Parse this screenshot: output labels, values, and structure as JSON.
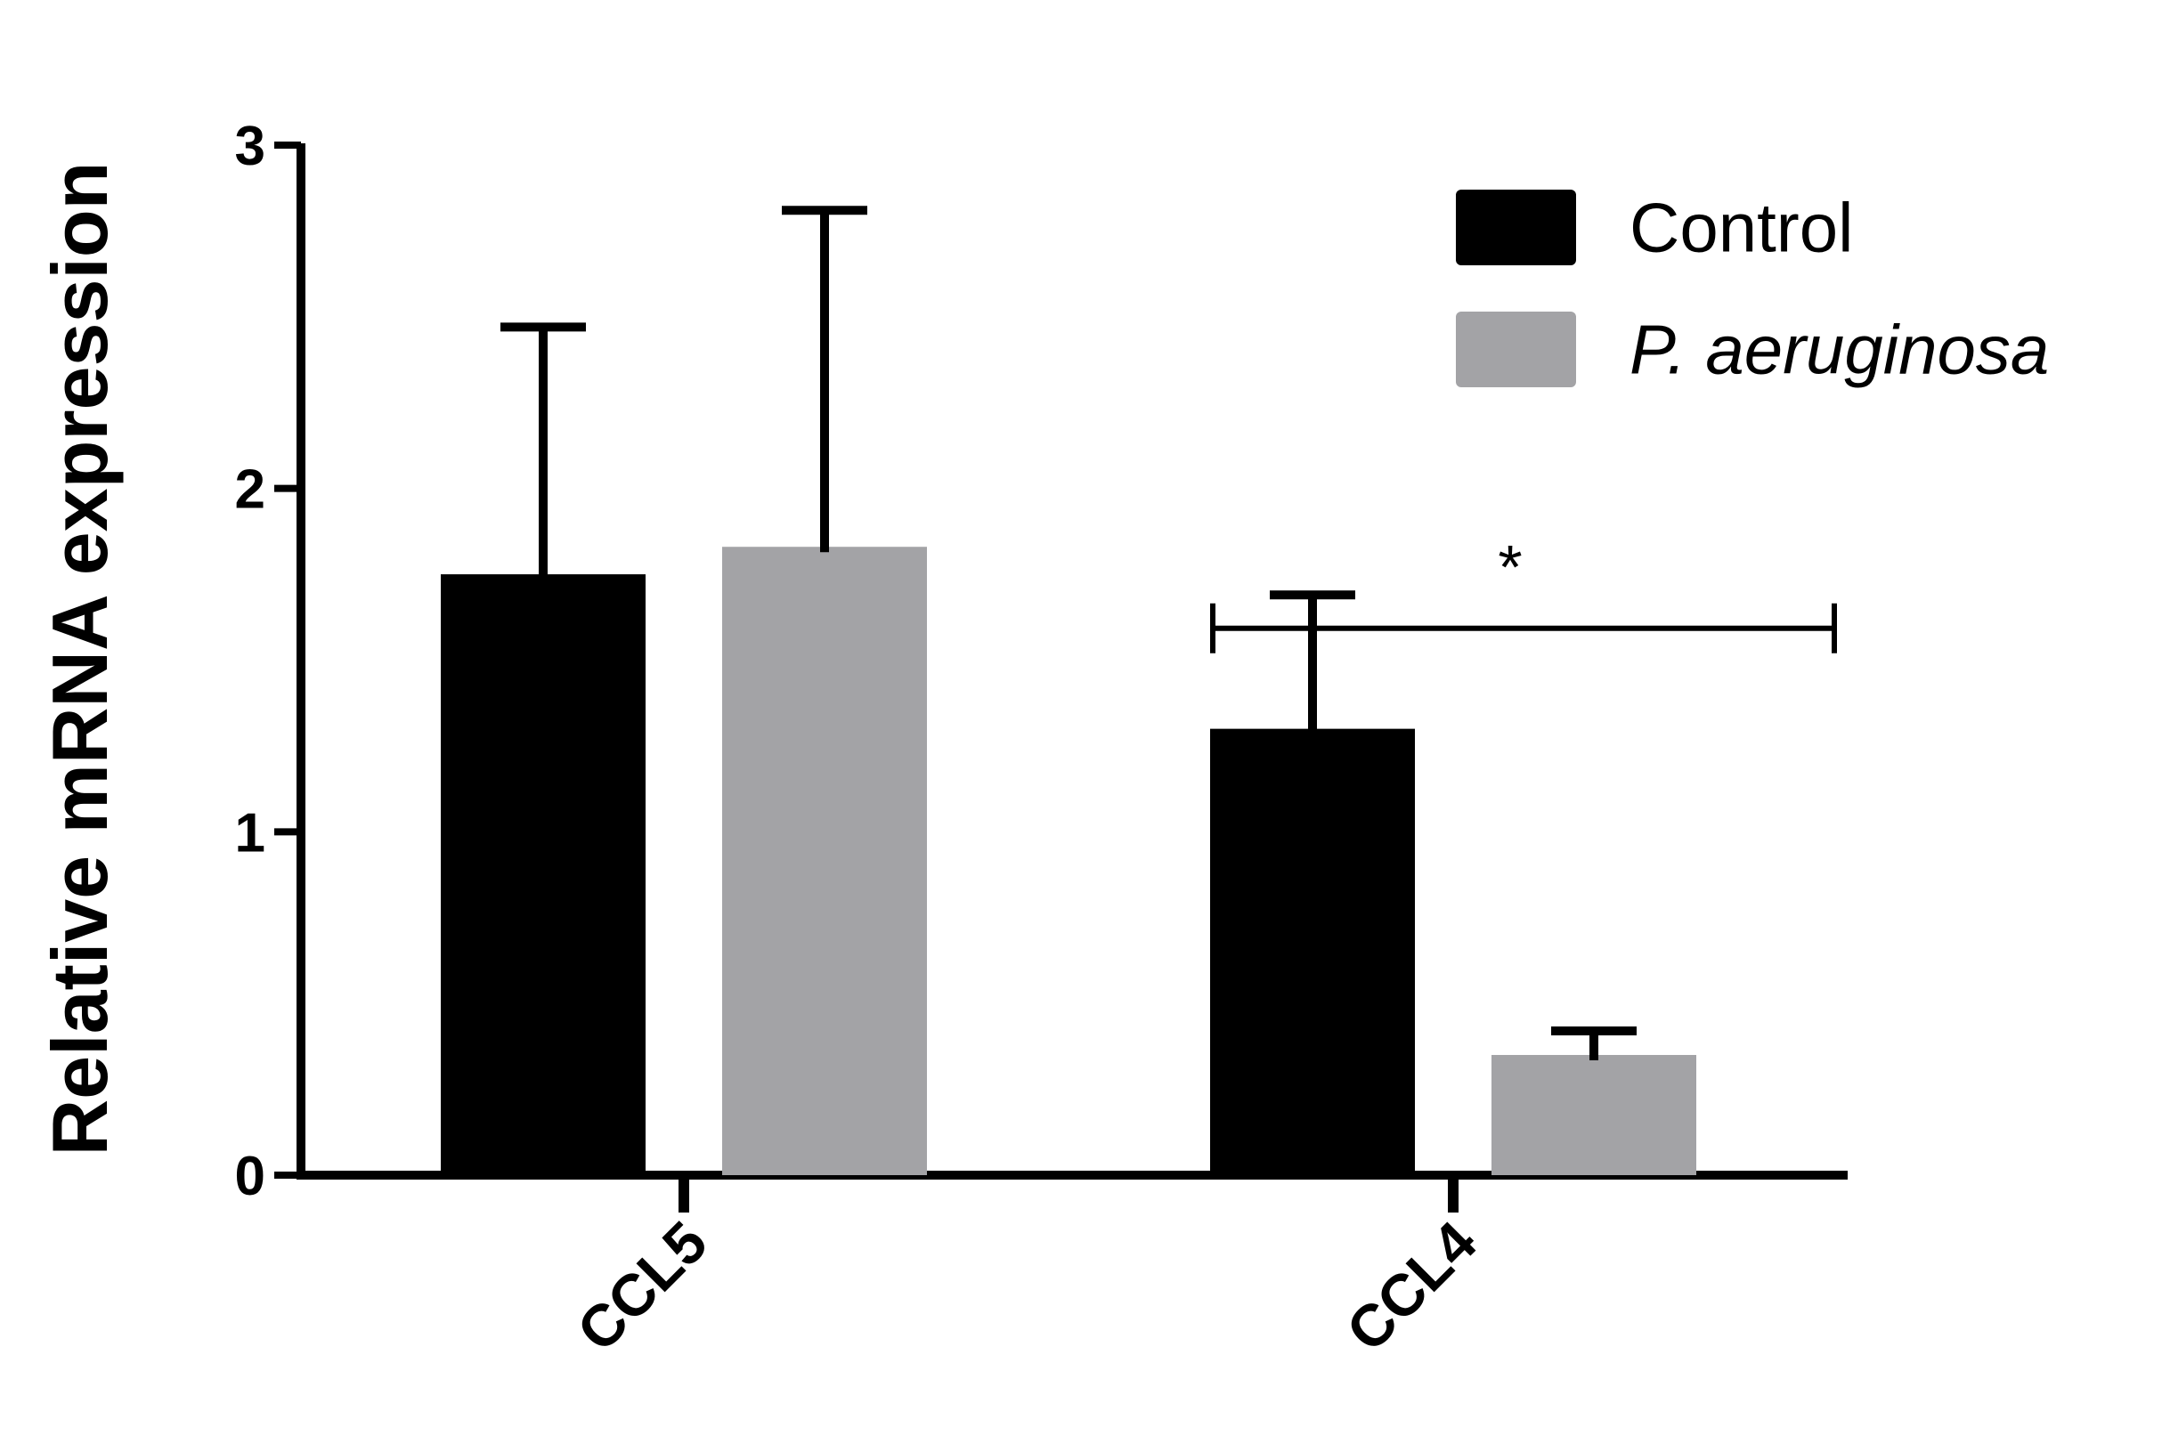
{
  "chart_data": {
    "type": "bar",
    "categories": [
      "CCL5",
      "CCL4"
    ],
    "series": [
      {
        "name": "Control",
        "values": [
          1.75,
          1.3
        ],
        "errors": [
          0.72,
          0.39
        ],
        "color": "#000000",
        "italic": false
      },
      {
        "name": "P. aeruginosa",
        "values": [
          1.83,
          0.35
        ],
        "errors": [
          0.98,
          0.07
        ],
        "color": "#a3a3a6",
        "italic": true
      }
    ],
    "xlabel": "",
    "ylabel": "Relative mRNA expression",
    "ylim": [
      0,
      3
    ],
    "yticks": [
      "0",
      "1",
      "2",
      "3"
    ],
    "grid": false,
    "legend_position": "top-right",
    "annotations": [
      {
        "text": "*",
        "category": "CCL4",
        "y": 1.8
      }
    ]
  }
}
